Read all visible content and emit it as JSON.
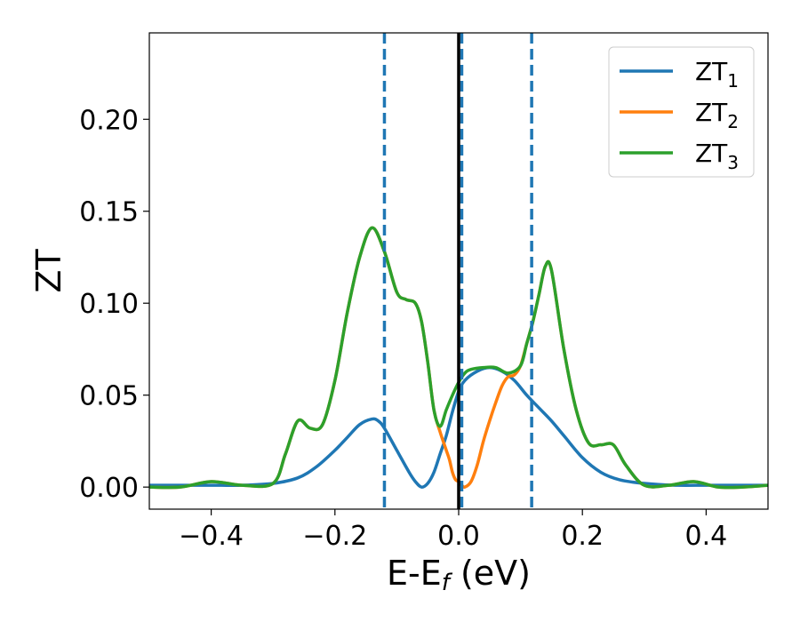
{
  "chart_data": {
    "type": "line",
    "title": "",
    "xlabel": "E-E",
    "xlabel_sub": "f",
    "xlabel_unit": " (eV)",
    "ylabel": "ZT",
    "xlim": [
      -0.5,
      0.5
    ],
    "ylim": [
      -0.012,
      0.247
    ],
    "xticks": [
      -0.4,
      -0.2,
      0.0,
      0.2,
      0.4
    ],
    "xtick_labels": [
      "−0.4",
      "−0.2",
      "0.0",
      "0.2",
      "0.4"
    ],
    "yticks": [
      0.0,
      0.05,
      0.1,
      0.15,
      0.2
    ],
    "ytick_labels": [
      "0.00",
      "0.05",
      "0.10",
      "0.15",
      "0.20"
    ],
    "grid": false,
    "legend_position": "top-right",
    "colors": {
      "ZT1": "#1f77b4",
      "ZT2": "#ff7f0e",
      "ZT3": "#2ca02c",
      "fermi": "#000000"
    },
    "series": [
      {
        "name": "ZT",
        "sub": "1",
        "color": "#1f77b4",
        "x": [
          -0.5,
          -0.45,
          -0.4,
          -0.35,
          -0.3,
          -0.26,
          -0.23,
          -0.2,
          -0.18,
          -0.16,
          -0.14,
          -0.13,
          -0.12,
          -0.1,
          -0.08,
          -0.07,
          -0.06,
          -0.05,
          -0.04,
          -0.03,
          -0.02,
          -0.01,
          0.0,
          0.01,
          0.03,
          0.05,
          0.07,
          0.09,
          0.11,
          0.13,
          0.15,
          0.17,
          0.2,
          0.23,
          0.26,
          0.3,
          0.35,
          0.4,
          0.45,
          0.5
        ],
        "y": [
          0.001,
          0.001,
          0.001,
          0.001,
          0.002,
          0.005,
          0.011,
          0.02,
          0.027,
          0.034,
          0.037,
          0.036,
          0.032,
          0.02,
          0.008,
          0.003,
          0.0,
          0.002,
          0.008,
          0.018,
          0.028,
          0.041,
          0.052,
          0.058,
          0.063,
          0.065,
          0.063,
          0.058,
          0.05,
          0.043,
          0.036,
          0.028,
          0.016,
          0.008,
          0.004,
          0.002,
          0.001,
          0.001,
          0.001,
          0.001
        ]
      },
      {
        "name": "ZT",
        "sub": "2",
        "color": "#ff7f0e",
        "x": [
          -0.5,
          -0.45,
          -0.4,
          -0.35,
          -0.3,
          -0.28,
          -0.26,
          -0.24,
          -0.22,
          -0.2,
          -0.18,
          -0.16,
          -0.14,
          -0.12,
          -0.1,
          -0.085,
          -0.07,
          -0.06,
          -0.05,
          -0.04,
          -0.03,
          -0.02,
          -0.015,
          -0.01,
          -0.005,
          0.0,
          0.005,
          0.01,
          0.02,
          0.03,
          0.04,
          0.05,
          0.06,
          0.07,
          0.08,
          0.09,
          0.1,
          0.11,
          0.12,
          0.13,
          0.14,
          0.15,
          0.17,
          0.19,
          0.21,
          0.23,
          0.25,
          0.27,
          0.3,
          0.34,
          0.38,
          0.42,
          0.46,
          0.5
        ],
        "y": [
          0.0,
          0.0,
          0.003,
          0.001,
          0.002,
          0.018,
          0.036,
          0.032,
          0.034,
          0.058,
          0.095,
          0.125,
          0.141,
          0.128,
          0.106,
          0.102,
          0.1,
          0.09,
          0.068,
          0.042,
          0.03,
          0.02,
          0.015,
          0.008,
          0.004,
          0.003,
          0.001,
          0.0,
          0.003,
          0.012,
          0.025,
          0.036,
          0.046,
          0.055,
          0.06,
          0.061,
          0.066,
          0.078,
          0.09,
          0.105,
          0.12,
          0.118,
          0.075,
          0.042,
          0.024,
          0.023,
          0.023,
          0.012,
          0.001,
          0.001,
          0.003,
          0.0,
          0.0,
          0.001
        ]
      },
      {
        "name": "ZT",
        "sub": "3",
        "color": "#2ca02c",
        "x": [
          -0.5,
          -0.45,
          -0.4,
          -0.35,
          -0.3,
          -0.28,
          -0.26,
          -0.24,
          -0.22,
          -0.2,
          -0.18,
          -0.16,
          -0.14,
          -0.12,
          -0.1,
          -0.085,
          -0.07,
          -0.06,
          -0.05,
          -0.04,
          -0.03,
          -0.02,
          -0.01,
          0.0,
          0.01,
          0.02,
          0.04,
          0.06,
          0.08,
          0.1,
          0.11,
          0.12,
          0.13,
          0.14,
          0.15,
          0.17,
          0.19,
          0.21,
          0.23,
          0.25,
          0.27,
          0.3,
          0.34,
          0.38,
          0.42,
          0.46,
          0.5
        ],
        "y": [
          0.0,
          0.0,
          0.003,
          0.001,
          0.002,
          0.018,
          0.036,
          0.032,
          0.034,
          0.058,
          0.095,
          0.125,
          0.141,
          0.128,
          0.106,
          0.102,
          0.1,
          0.09,
          0.068,
          0.042,
          0.033,
          0.042,
          0.05,
          0.057,
          0.062,
          0.064,
          0.065,
          0.065,
          0.062,
          0.066,
          0.078,
          0.09,
          0.105,
          0.12,
          0.118,
          0.075,
          0.042,
          0.024,
          0.023,
          0.023,
          0.012,
          0.001,
          0.001,
          0.003,
          0.0,
          0.0,
          0.001
        ]
      }
    ],
    "vlines": [
      {
        "x": -0.12,
        "style": "dashed",
        "color": "#1f77b4"
      },
      {
        "x": 0.005,
        "style": "dashed",
        "color": "#1f77b4"
      },
      {
        "x": 0.118,
        "style": "dashed",
        "color": "#1f77b4"
      },
      {
        "x": 0.0,
        "style": "solid",
        "color": "#000000"
      }
    ]
  }
}
